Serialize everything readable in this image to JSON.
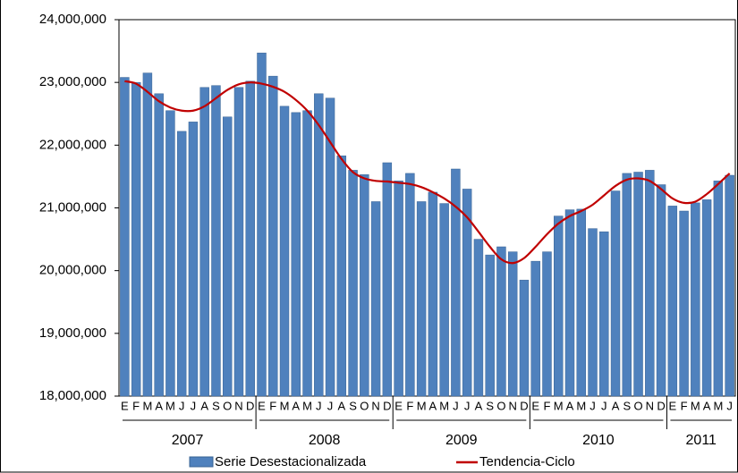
{
  "chart_data": {
    "type": "bar",
    "categories": [
      "E",
      "F",
      "M",
      "A",
      "M",
      "J",
      "J",
      "A",
      "S",
      "O",
      "N",
      "D",
      "E",
      "F",
      "M",
      "A",
      "M",
      "J",
      "J",
      "A",
      "S",
      "O",
      "N",
      "D",
      "E",
      "F",
      "M",
      "A",
      "M",
      "J",
      "J",
      "A",
      "S",
      "O",
      "N",
      "D",
      "E",
      "F",
      "M",
      "A",
      "M",
      "J",
      "J",
      "A",
      "S",
      "O",
      "N",
      "D",
      "E",
      "F",
      "M",
      "A",
      "M",
      "J"
    ],
    "year_labels": [
      "2007",
      "2008",
      "2009",
      "2010",
      "2011"
    ],
    "series": [
      {
        "name": "Serie Desestacionalizada",
        "type": "bar",
        "color": "#4f81bd",
        "values": [
          23080000,
          23000000,
          23150000,
          22820000,
          22550000,
          22220000,
          22370000,
          22920000,
          22950000,
          22450000,
          22920000,
          23020000,
          23470000,
          23100000,
          22620000,
          22520000,
          22550000,
          22820000,
          22750000,
          21830000,
          21600000,
          21530000,
          21100000,
          21720000,
          21430000,
          21550000,
          21100000,
          21250000,
          21070000,
          21620000,
          21300000,
          20500000,
          20250000,
          20380000,
          20300000,
          19850000,
          20150000,
          20300000,
          20870000,
          20970000,
          20980000,
          20670000,
          20620000,
          21270000,
          21550000,
          21570000,
          21600000,
          21370000,
          21030000,
          20950000,
          21080000,
          21130000,
          21430000,
          21520000
        ]
      },
      {
        "name": "Tendencia-Ciclo",
        "type": "line",
        "color": "#c00000",
        "values": [
          23020000,
          22980000,
          22850000,
          22700000,
          22600000,
          22550000,
          22550000,
          22620000,
          22750000,
          22880000,
          22970000,
          23000000,
          22980000,
          22930000,
          22850000,
          22720000,
          22550000,
          22320000,
          22050000,
          21780000,
          21570000,
          21470000,
          21430000,
          21420000,
          21400000,
          21380000,
          21330000,
          21250000,
          21150000,
          21020000,
          20850000,
          20620000,
          20380000,
          20180000,
          20120000,
          20200000,
          20380000,
          20580000,
          20750000,
          20870000,
          20950000,
          21050000,
          21200000,
          21350000,
          21450000,
          21470000,
          21430000,
          21300000,
          21150000,
          21080000,
          21100000,
          21220000,
          21380000,
          21550000
        ]
      }
    ],
    "ylim": [
      18000000,
      24000000
    ],
    "yticks": [
      {
        "value": 18000000,
        "label": "18,000,000"
      },
      {
        "value": 19000000,
        "label": "19,000,000"
      },
      {
        "value": 20000000,
        "label": "20,000,000"
      },
      {
        "value": 21000000,
        "label": "21,000,000"
      },
      {
        "value": 22000000,
        "label": "22,000,000"
      },
      {
        "value": 23000000,
        "label": "23,000,000"
      },
      {
        "value": 24000000,
        "label": "24,000,000"
      }
    ],
    "grid": false,
    "legend": "bottom"
  }
}
